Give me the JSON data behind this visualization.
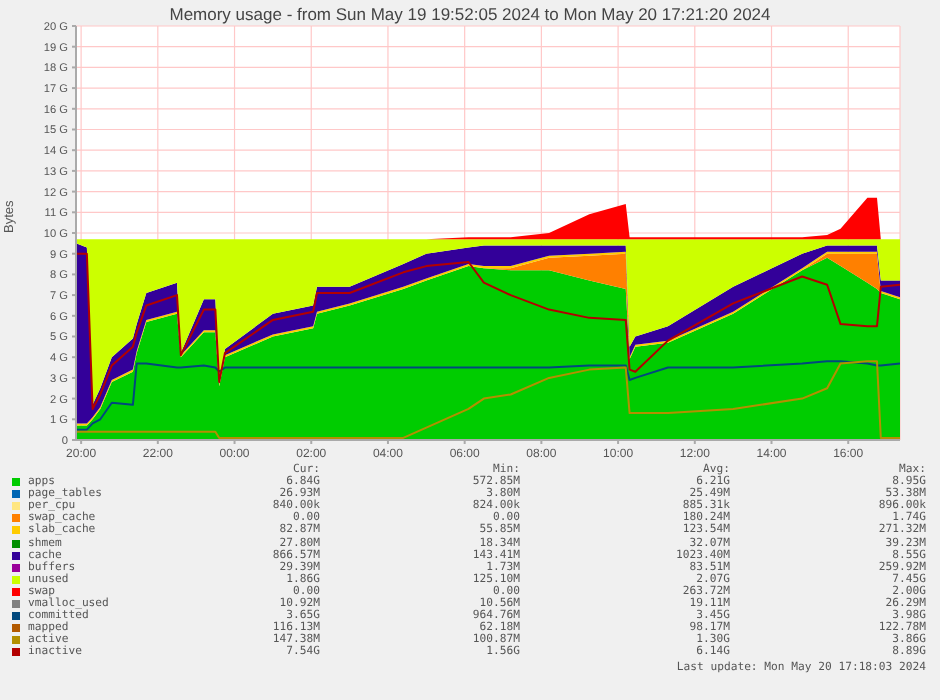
{
  "chart_data": {
    "type": "area",
    "stacked": true,
    "title": "Memory usage - from Sun May 19 19:52:05 2024 to Mon May 20 17:21:20 2024",
    "ylabel": "Bytes",
    "x": [
      "2024-05-19T19:52",
      "2024-05-19T20:09",
      "2024-05-19T20:18",
      "2024-05-19T20:30",
      "2024-05-19T20:48",
      "2024-05-19T21:21",
      "2024-05-19T21:27",
      "2024-05-19T21:42",
      "2024-05-19T22:30",
      "2024-05-19T22:36",
      "2024-05-19T23:12",
      "2024-05-19T23:30",
      "2024-05-19T23:36",
      "2024-05-19T23:45",
      "2024-05-20T01:00",
      "2024-05-20T02:03",
      "2024-05-20T02:09",
      "2024-05-20T03:00",
      "2024-05-20T04:24",
      "2024-05-20T05:00",
      "2024-05-20T06:06",
      "2024-05-20T06:30",
      "2024-05-20T07:12",
      "2024-05-20T08:12",
      "2024-05-20T09:15",
      "2024-05-20T10:12",
      "2024-05-20T10:18",
      "2024-05-20T10:27",
      "2024-05-20T11:18",
      "2024-05-20T13:00",
      "2024-05-20T14:48",
      "2024-05-20T15:27",
      "2024-05-20T15:48",
      "2024-05-20T16:30",
      "2024-05-20T16:45",
      "2024-05-20T16:51",
      "2024-05-20T17:21"
    ],
    "xlim": [
      "2024-05-19T19:52",
      "2024-05-20T17:21"
    ],
    "xticks": [
      {
        "value": "2024-05-19T20:00",
        "label": "20:00"
      },
      {
        "value": "2024-05-19T22:00",
        "label": "22:00"
      },
      {
        "value": "2024-05-20T00:00",
        "label": "00:00"
      },
      {
        "value": "2024-05-20T02:00",
        "label": "02:00"
      },
      {
        "value": "2024-05-20T04:00",
        "label": "04:00"
      },
      {
        "value": "2024-05-20T06:00",
        "label": "06:00"
      },
      {
        "value": "2024-05-20T08:00",
        "label": "08:00"
      },
      {
        "value": "2024-05-20T10:00",
        "label": "10:00"
      },
      {
        "value": "2024-05-20T12:00",
        "label": "12:00"
      },
      {
        "value": "2024-05-20T14:00",
        "label": "14:00"
      },
      {
        "value": "2024-05-20T16:00",
        "label": "16:00"
      }
    ],
    "ylim": [
      0,
      20
    ],
    "yticks": [
      0,
      {
        "value": 1,
        "label": "1 G"
      },
      {
        "value": 2,
        "label": "2 G"
      },
      {
        "value": 3,
        "label": "3 G"
      },
      {
        "value": 4,
        "label": "4 G"
      },
      {
        "value": 5,
        "label": "5 G"
      },
      {
        "value": 6,
        "label": "6 G"
      },
      {
        "value": 7,
        "label": "7 G"
      },
      {
        "value": 8,
        "label": "8 G"
      },
      {
        "value": 9,
        "label": "9 G"
      },
      {
        "value": 10,
        "label": "10 G"
      },
      {
        "value": 11,
        "label": "11 G"
      },
      {
        "value": 12,
        "label": "12 G"
      },
      {
        "value": 13,
        "label": "13 G"
      },
      {
        "value": 14,
        "label": "14 G"
      },
      {
        "value": 15,
        "label": "15 G"
      },
      {
        "value": 16,
        "label": "16 G"
      },
      {
        "value": 17,
        "label": "17 G"
      },
      {
        "value": 18,
        "label": "18 G"
      },
      {
        "value": 19,
        "label": "19 G"
      },
      {
        "value": 20,
        "label": "20 G"
      }
    ],
    "grid": true,
    "legend": "bottom",
    "series": [
      {
        "name": "apps",
        "color": "#00cc00",
        "values": [
          0.7,
          0.7,
          1.0,
          1.5,
          2.8,
          3.3,
          4.2,
          5.7,
          6.1,
          4.0,
          5.2,
          5.2,
          2.6,
          4.0,
          5.0,
          5.4,
          6.1,
          6.5,
          7.3,
          7.7,
          8.4,
          8.3,
          8.2,
          8.2,
          7.7,
          7.3,
          3.9,
          4.5,
          4.7,
          6.1,
          8.2,
          8.8,
          8.4,
          7.6,
          7.3,
          7.1,
          6.8
        ]
      },
      {
        "name": "page_tables",
        "color": "#0066b3",
        "values": [
          null,
          null,
          null,
          null,
          null,
          null,
          null,
          null,
          null,
          null,
          null,
          null,
          null,
          null,
          null,
          null,
          null,
          null,
          null,
          null,
          null,
          null,
          null,
          null,
          null,
          null,
          null,
          null,
          null,
          null,
          null,
          null,
          null,
          null,
          null,
          null,
          null
        ]
      },
      {
        "name": "per_cpu",
        "color": "#ffe680",
        "values": [
          null,
          null,
          null,
          null,
          null,
          null,
          null,
          null,
          null,
          null,
          null,
          null,
          null,
          null,
          null,
          null,
          null,
          null,
          null,
          null,
          null,
          null,
          null,
          null,
          null,
          null,
          null,
          null,
          null,
          null,
          null,
          null,
          null,
          null,
          null,
          null,
          null
        ]
      },
      {
        "name": "swap_cache",
        "color": "#ff8000",
        "values": [
          0,
          0,
          0,
          0,
          0,
          0,
          0,
          0,
          0,
          0,
          0,
          0,
          0,
          0,
          0,
          0,
          0,
          0,
          0,
          0,
          0,
          0,
          0.1,
          0.6,
          1.2,
          1.7,
          0,
          0,
          0,
          0,
          0,
          0.2,
          0.6,
          1.4,
          1.7,
          0,
          0
        ]
      },
      {
        "name": "slab_cache",
        "color": "#ffcc00",
        "values": [
          0.1,
          0.1,
          0.1,
          0.1,
          0.1,
          0.1,
          0.1,
          0.1,
          0.1,
          0.1,
          0.1,
          0.1,
          0.1,
          0.1,
          0.1,
          0.1,
          0.1,
          0.1,
          0.1,
          0.1,
          0.1,
          0.1,
          0.1,
          0.1,
          0.1,
          0.1,
          0.1,
          0.1,
          0.1,
          0.1,
          0.1,
          0.1,
          0.1,
          0.1,
          0.1,
          0.1,
          0.1
        ]
      },
      {
        "name": "shmem",
        "color": "#008f00",
        "values": [
          null,
          null,
          null,
          null,
          null,
          null,
          null,
          null,
          null,
          null,
          null,
          null,
          null,
          null,
          null,
          null,
          null,
          null,
          null,
          null,
          null,
          null,
          null,
          null,
          null,
          null,
          null,
          null,
          null,
          null,
          null,
          null,
          null,
          null,
          null,
          null,
          null
        ]
      },
      {
        "name": "cache",
        "color": "#330099",
        "values": [
          8.7,
          8.5,
          0.6,
          0.9,
          1.1,
          1.5,
          1.3,
          1.3,
          1.4,
          0.1,
          1.5,
          1.5,
          0.1,
          0.3,
          1.0,
          1.0,
          1.2,
          0.8,
          1.1,
          1.2,
          0.8,
          1.0,
          1.0,
          0.5,
          0.4,
          0.3,
          0.5,
          0.4,
          0.7,
          1.2,
          0.7,
          0.3,
          0.3,
          0.3,
          0.3,
          0.5,
          0.8
        ]
      },
      {
        "name": "buffers",
        "color": "#990099",
        "values": [
          null,
          null,
          null,
          null,
          null,
          null,
          null,
          null,
          null,
          null,
          null,
          null,
          null,
          null,
          null,
          null,
          null,
          null,
          null,
          null,
          null,
          null,
          null,
          null,
          null,
          null,
          null,
          null,
          null,
          null,
          null,
          null,
          null,
          null,
          null,
          null,
          null
        ]
      },
      {
        "name": "unused",
        "color": "#ccff00",
        "values": [
          0.2,
          0.4,
          8.0,
          7.2,
          5.7,
          4.8,
          4.1,
          2.6,
          2.1,
          5.5,
          2.9,
          2.9,
          6.9,
          5.3,
          3.6,
          3.2,
          2.3,
          2.3,
          1.2,
          0.7,
          0.4,
          0.3,
          0.3,
          0.3,
          0.3,
          0.3,
          5.2,
          4.7,
          4.2,
          2.3,
          0.7,
          0.3,
          0.3,
          0.3,
          0.3,
          2.0,
          2.0
        ]
      },
      {
        "name": "swap",
        "color": "#ff0000",
        "values": [
          0,
          0,
          0,
          0,
          0,
          0,
          0,
          0,
          0,
          0,
          0,
          0,
          0,
          0,
          0,
          0,
          0,
          0,
          0,
          0,
          0.1,
          0.1,
          0.1,
          0.3,
          1.2,
          1.7,
          0.1,
          0.1,
          0.1,
          0.1,
          0.1,
          0.2,
          0.5,
          2.0,
          2.0,
          0,
          0
        ]
      },
      {
        "name": "vmalloc_used",
        "type": "line",
        "color": "#808080",
        "values": [
          null,
          null,
          null,
          null,
          null,
          null,
          null,
          null,
          null,
          null,
          null,
          null,
          null,
          null,
          null,
          null,
          null,
          null,
          null,
          null,
          null,
          null,
          null,
          null,
          null,
          null,
          null,
          null,
          null,
          null,
          null,
          null,
          null,
          null,
          null,
          null,
          null
        ]
      },
      {
        "name": "committed",
        "type": "line",
        "color": "#00487d",
        "values": [
          0.5,
          0.5,
          0.8,
          1.0,
          1.8,
          1.7,
          3.7,
          3.7,
          3.5,
          3.5,
          3.6,
          3.5,
          3.3,
          3.5,
          3.5,
          3.5,
          3.5,
          3.5,
          3.5,
          3.5,
          3.5,
          3.5,
          3.5,
          3.5,
          3.6,
          3.6,
          2.9,
          3.0,
          3.5,
          3.5,
          3.7,
          3.8,
          3.8,
          3.7,
          3.6,
          3.6,
          3.7
        ]
      },
      {
        "name": "mapped",
        "type": "line",
        "color": "#b35a00",
        "values": [
          null,
          null,
          null,
          null,
          null,
          null,
          null,
          null,
          null,
          null,
          null,
          null,
          null,
          null,
          null,
          null,
          null,
          null,
          null,
          null,
          null,
          null,
          null,
          null,
          null,
          null,
          null,
          null,
          null,
          null,
          null,
          null,
          null,
          null,
          null,
          null,
          null
        ]
      },
      {
        "name": "active",
        "type": "line",
        "color": "#b38f00",
        "values": [
          0.4,
          0.4,
          0.4,
          0.4,
          0.4,
          0.4,
          0.4,
          0.4,
          0.4,
          0.4,
          0.4,
          0.4,
          0.1,
          0.1,
          0.1,
          0.1,
          0.1,
          0.1,
          0.1,
          0.6,
          1.5,
          2.0,
          2.2,
          3.0,
          3.4,
          3.5,
          1.3,
          1.3,
          1.3,
          1.5,
          2.0,
          2.5,
          3.7,
          3.8,
          3.8,
          0.1,
          0.1
        ]
      },
      {
        "name": "inactive",
        "type": "line",
        "color": "#b30000",
        "values": [
          9.0,
          9.0,
          1.5,
          2.2,
          3.6,
          4.5,
          5.2,
          6.5,
          7.0,
          4.1,
          6.3,
          6.3,
          2.8,
          4.2,
          5.8,
          6.2,
          7.1,
          7.1,
          8.1,
          8.4,
          8.6,
          7.6,
          7.0,
          6.3,
          5.9,
          5.8,
          3.4,
          3.3,
          4.8,
          6.6,
          7.9,
          7.5,
          5.6,
          5.5,
          5.5,
          7.4,
          7.5
        ]
      }
    ],
    "annotations": [
      "Cur:",
      "Min:",
      "Avg:",
      "Max:",
      "6.84G",
      "572.85M",
      "6.21G",
      "8.95G",
      "26.93M",
      "3.80M",
      "25.49M",
      "53.38M",
      "840.00k",
      "824.00k",
      "885.31k",
      "896.00k",
      "0.00",
      "0.00",
      "180.24M",
      "1.74G",
      "82.87M",
      "55.85M",
      "123.54M",
      "271.32M",
      "27.80M",
      "18.34M",
      "32.07M",
      "39.23M",
      "866.57M",
      "143.41M",
      "1023.40M",
      "8.55G",
      "29.39M",
      "1.73M",
      "83.51M",
      "259.92M",
      "1.86G",
      "125.10M",
      "2.07G",
      "7.45G",
      "0.00",
      "0.00",
      "263.72M",
      "2.00G",
      "10.92M",
      "10.56M",
      "19.11M",
      "26.29M",
      "3.65G",
      "964.76M",
      "3.45G",
      "3.98G",
      "116.13M",
      "62.18M",
      "98.17M",
      "122.78M",
      "147.38M",
      "100.87M",
      "1.30G",
      "3.86G",
      "7.54G",
      "1.56G",
      "6.14G",
      "8.89G",
      "Last update: Mon May 20 17:18:03 2024"
    ]
  }
}
